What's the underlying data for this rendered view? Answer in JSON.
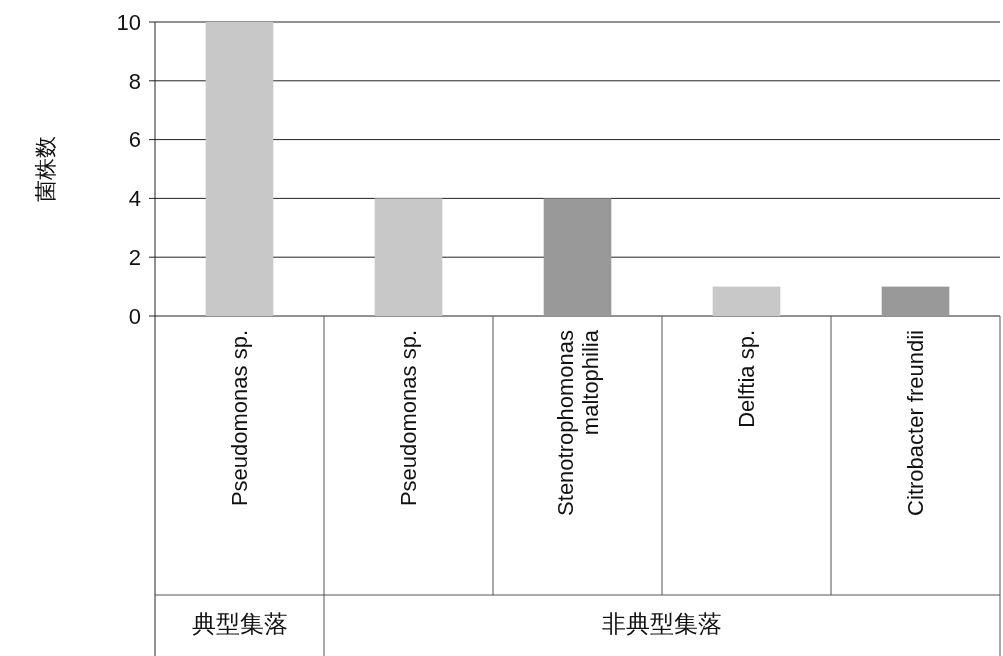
{
  "chart_data": {
    "type": "bar",
    "ylabel": "菌株数",
    "categories": [
      "Pseudomonas sp.",
      "Pseudomonas sp.",
      "Stenotrophomonas maltophilia",
      "Delftia sp.",
      "Citrobacter freundii"
    ],
    "values": [
      10,
      4,
      4,
      1,
      1
    ],
    "colors": [
      "#c8c8c8",
      "#c8c8c8",
      "#999999",
      "#c8c8c8",
      "#999999"
    ],
    "ylim": [
      0,
      10
    ],
    "yticks": [
      0,
      2,
      4,
      6,
      8,
      10
    ],
    "grid": "y",
    "annotations": [
      "典型集落",
      "非典型集落"
    ]
  }
}
